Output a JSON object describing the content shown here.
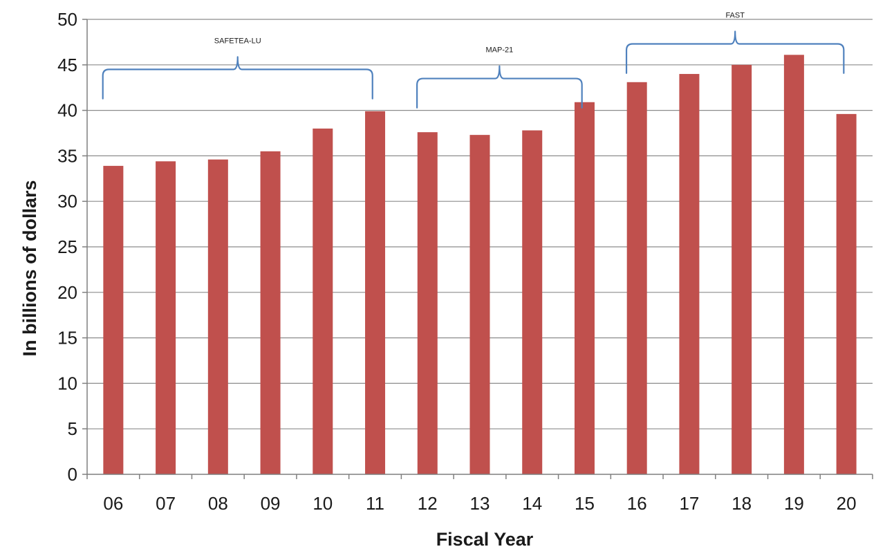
{
  "colors": {
    "bar": "#c0504d",
    "bracket": "#4f81bd",
    "grid": "#8c8c8c"
  },
  "chart_data": {
    "type": "bar",
    "categories": [
      "06",
      "07",
      "08",
      "09",
      "10",
      "11",
      "12",
      "13",
      "14",
      "15",
      "16",
      "17",
      "18",
      "19",
      "20"
    ],
    "values": [
      33.9,
      34.4,
      34.6,
      35.5,
      38.0,
      39.9,
      37.6,
      37.3,
      37.8,
      40.9,
      43.1,
      44.0,
      45.0,
      46.1,
      39.6
    ],
    "title": "",
    "xlabel": "Fiscal Year",
    "ylabel": "In billions of dollars",
    "ylim": [
      0,
      50
    ],
    "yticks": [
      0,
      5,
      10,
      15,
      20,
      25,
      30,
      35,
      40,
      45,
      50
    ],
    "grid": true,
    "legend": "none",
    "annotations": [
      {
        "type": "bracket",
        "label": "SAFETEA-LU",
        "from": "06",
        "to": "11",
        "level": 44.5
      },
      {
        "type": "bracket",
        "label": "MAP-21",
        "from": "12",
        "to": "15",
        "level": 43.5
      },
      {
        "type": "bracket",
        "label": "FAST",
        "from": "16",
        "to": "20",
        "level": 47.3
      }
    ]
  }
}
